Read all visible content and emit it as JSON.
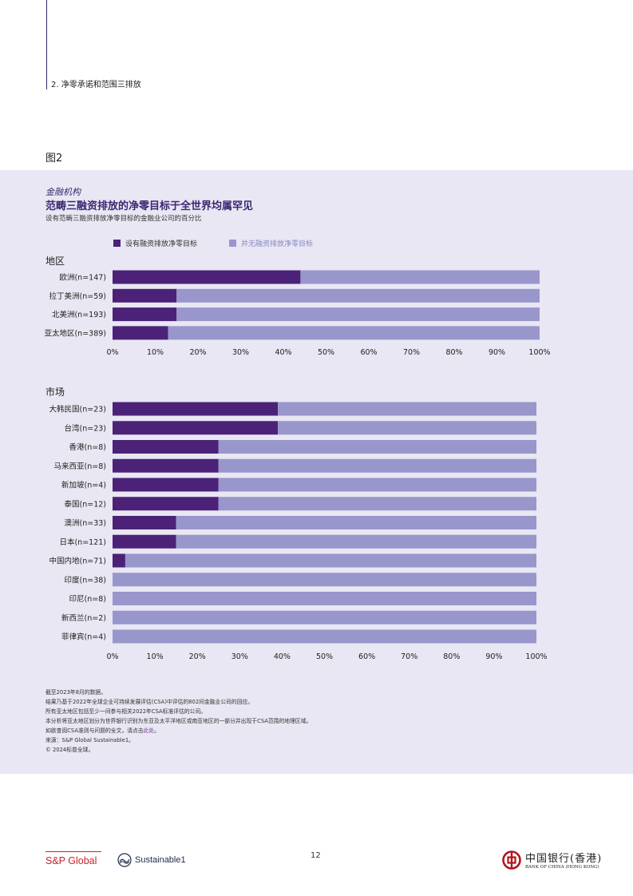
{
  "header": {
    "section": "2. 净零承诺和范围三排放"
  },
  "figure_label": "图2",
  "chart_header": {
    "kicker": "金融机构",
    "title": "范畴三融资排放的净零目标于全世界均属罕见",
    "subtitle": "设有范畴三融资排放净零目标的金融业公司的百分比"
  },
  "legend": {
    "with_target": "设有融资排放净零目标",
    "without_target": "并无融资排放净零目标"
  },
  "colors": {
    "with_target": "#4b2277",
    "without_target": "#9996cc"
  },
  "chart_data": [
    {
      "type": "bar",
      "orientation": "horizontal",
      "stacked": true,
      "group_title": "地区",
      "categories": [
        "欧洲(n=147)",
        "拉丁美洲(n=59)",
        "北美洲(n=193)",
        "亚太地区(n=389)"
      ],
      "series": [
        {
          "name": "设有融资排放净零目标",
          "values": [
            44,
            15,
            15,
            13
          ]
        },
        {
          "name": "并无融资排放净零目标",
          "values": [
            56,
            85,
            85,
            87
          ]
        }
      ],
      "xlim": [
        0,
        100
      ],
      "xticks": [
        "0%",
        "10%",
        "20%",
        "30%",
        "40%",
        "50%",
        "60%",
        "70%",
        "80%",
        "90%",
        "100%"
      ]
    },
    {
      "type": "bar",
      "orientation": "horizontal",
      "stacked": true,
      "group_title": "市场",
      "categories": [
        "大韩民国(n=23)",
        "台湾(n=23)",
        "香港(n=8)",
        "马来西亚(n=8)",
        "新加坡(n=4)",
        "泰国(n=12)",
        "澳洲(n=33)",
        "日本(n=121)",
        "中国内地(n=71)",
        "印度(n=38)",
        "印尼(n=8)",
        "新西兰(n=2)",
        "菲律宾(n=4)"
      ],
      "series": [
        {
          "name": "设有融资排放净零目标",
          "values": [
            39,
            39,
            25,
            25,
            25,
            25,
            15,
            15,
            3,
            0,
            0,
            0,
            0
          ]
        },
        {
          "name": "并无融资排放净零目标",
          "values": [
            61,
            61,
            75,
            75,
            75,
            75,
            85,
            85,
            97,
            100,
            100,
            100,
            100
          ]
        }
      ],
      "xlim": [
        0,
        100
      ],
      "xticks": [
        "0%",
        "10%",
        "20%",
        "30%",
        "40%",
        "50%",
        "60%",
        "70%",
        "80%",
        "90%",
        "100%"
      ]
    }
  ],
  "notes": {
    "lines": [
      "截至2023年8月的数据。",
      "结果乃基于2022年全球企业可持续发展评估(CSA)中评估的802间金融业公司的回应。",
      "所有亚太地区包括至少一间参与相关2022年CSA标准评估的公司。",
      "本分析将亚太地区划分为世界银行识别为东亚及太平洋地区或南亚地区的一部分并出现于CSA范围的地理区域。"
    ],
    "link_prefix": "如欲查阅CSA准则与问题的全文，请点击",
    "link_text": "此处",
    "link_suffix": "。",
    "source": "来源：S&P Global Sustainable1。",
    "copyright": "© 2024标普全球。"
  },
  "footer": {
    "sp_logo": "S&P Global",
    "sustainable1": "Sustainable1",
    "page_number": "12",
    "boc_cn": "中国银行(香港)",
    "boc_en": "BANK OF CHINA (HONG KONG)"
  }
}
